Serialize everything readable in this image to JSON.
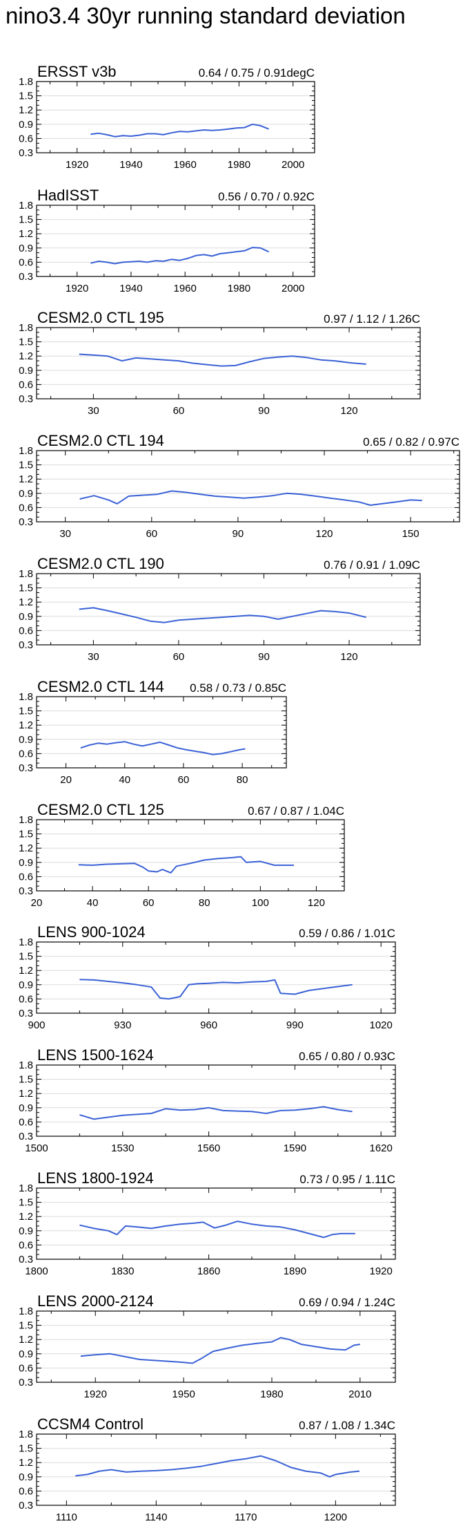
{
  "page": {
    "title": "nino3.4 30yr running standard deviation"
  },
  "style": {
    "line_color": "#3a61d6",
    "axis_color": "#000000",
    "grid_color": "#dcdcdc"
  },
  "chart_data": [
    {
      "type": "line",
      "title": "ERSST v3b",
      "stats": "0.64 / 0.75 / 0.91degC",
      "xlim": [
        1905,
        2008
      ],
      "ylim": [
        0.3,
        1.8
      ],
      "xticks": [
        1920,
        1940,
        1960,
        1980,
        2000
      ],
      "yticks": [
        0.3,
        0.6,
        0.9,
        1.2,
        1.5,
        1.8
      ],
      "grid": true,
      "x": [
        1925,
        1928,
        1931,
        1934,
        1937,
        1940,
        1943,
        1946,
        1949,
        1952,
        1955,
        1958,
        1961,
        1964,
        1967,
        1970,
        1973,
        1976,
        1979,
        1982,
        1985,
        1988,
        1991
      ],
      "y": [
        0.69,
        0.71,
        0.68,
        0.64,
        0.66,
        0.65,
        0.67,
        0.7,
        0.7,
        0.68,
        0.72,
        0.75,
        0.74,
        0.76,
        0.78,
        0.77,
        0.78,
        0.8,
        0.82,
        0.83,
        0.9,
        0.87,
        0.8
      ]
    },
    {
      "type": "line",
      "title": "HadISST",
      "stats": "0.56 / 0.70 / 0.92C",
      "xlim": [
        1905,
        2008
      ],
      "ylim": [
        0.3,
        1.8
      ],
      "xticks": [
        1920,
        1940,
        1960,
        1980,
        2000
      ],
      "yticks": [
        0.3,
        0.6,
        0.9,
        1.2,
        1.5,
        1.8
      ],
      "grid": true,
      "x": [
        1925,
        1928,
        1931,
        1934,
        1937,
        1940,
        1943,
        1946,
        1949,
        1952,
        1955,
        1958,
        1961,
        1964,
        1967,
        1970,
        1973,
        1976,
        1979,
        1982,
        1985,
        1988,
        1991
      ],
      "y": [
        0.58,
        0.62,
        0.6,
        0.57,
        0.6,
        0.61,
        0.62,
        0.6,
        0.63,
        0.62,
        0.66,
        0.64,
        0.68,
        0.74,
        0.76,
        0.73,
        0.78,
        0.8,
        0.82,
        0.84,
        0.91,
        0.9,
        0.82
      ]
    },
    {
      "type": "line",
      "title": "CESM2.0 CTL 195",
      "stats": "0.97 / 1.12 / 1.26C",
      "xlim": [
        10,
        145
      ],
      "ylim": [
        0.3,
        1.8
      ],
      "xticks": [
        30,
        60,
        90,
        120
      ],
      "yticks": [
        0.3,
        0.6,
        0.9,
        1.2,
        1.5,
        1.8
      ],
      "grid": true,
      "x": [
        25,
        30,
        35,
        40,
        45,
        50,
        55,
        60,
        65,
        70,
        75,
        80,
        85,
        90,
        95,
        100,
        105,
        110,
        115,
        120,
        126
      ],
      "y": [
        1.24,
        1.22,
        1.2,
        1.1,
        1.16,
        1.14,
        1.12,
        1.1,
        1.05,
        1.02,
        0.99,
        1.0,
        1.08,
        1.15,
        1.18,
        1.2,
        1.17,
        1.12,
        1.1,
        1.06,
        1.03
      ]
    },
    {
      "type": "line",
      "title": "CESM2.0 CTL 194",
      "stats": "0.65 / 0.82 / 0.97C",
      "xlim": [
        20,
        167
      ],
      "ylim": [
        0.3,
        1.8
      ],
      "xticks": [
        30,
        60,
        90,
        120,
        150
      ],
      "yticks": [
        0.3,
        0.6,
        0.9,
        1.2,
        1.5,
        1.8
      ],
      "grid": true,
      "x": [
        35,
        40,
        45,
        48,
        52,
        57,
        62,
        67,
        72,
        77,
        82,
        87,
        92,
        97,
        102,
        107,
        112,
        117,
        122,
        127,
        132,
        136,
        140,
        145,
        150,
        154
      ],
      "y": [
        0.78,
        0.85,
        0.76,
        0.68,
        0.84,
        0.86,
        0.88,
        0.95,
        0.92,
        0.88,
        0.84,
        0.82,
        0.8,
        0.82,
        0.85,
        0.9,
        0.88,
        0.84,
        0.8,
        0.76,
        0.72,
        0.65,
        0.68,
        0.72,
        0.76,
        0.75
      ]
    },
    {
      "type": "line",
      "title": "CESM2.0 CTL 190",
      "stats": "0.76 / 0.91 / 1.09C",
      "xlim": [
        10,
        145
      ],
      "ylim": [
        0.3,
        1.8
      ],
      "xticks": [
        30,
        60,
        90,
        120
      ],
      "yticks": [
        0.3,
        0.6,
        0.9,
        1.2,
        1.5,
        1.8
      ],
      "grid": true,
      "x": [
        25,
        30,
        35,
        40,
        45,
        50,
        55,
        60,
        65,
        70,
        75,
        80,
        85,
        90,
        95,
        100,
        105,
        110,
        115,
        120,
        126
      ],
      "y": [
        1.05,
        1.08,
        1.02,
        0.95,
        0.88,
        0.8,
        0.77,
        0.82,
        0.84,
        0.86,
        0.88,
        0.9,
        0.92,
        0.9,
        0.84,
        0.9,
        0.96,
        1.02,
        1.0,
        0.97,
        0.88
      ]
    },
    {
      "type": "line",
      "title": "CESM2.0 CTL 144",
      "stats": "0.58 / 0.73 / 0.85C",
      "xlim": [
        10,
        95
      ],
      "ylim": [
        0.3,
        1.8
      ],
      "xticks": [
        20,
        40,
        60,
        80
      ],
      "yticks": [
        0.3,
        0.6,
        0.9,
        1.2,
        1.5,
        1.8
      ],
      "grid": true,
      "x": [
        25,
        28,
        31,
        34,
        37,
        40,
        43,
        46,
        49,
        52,
        55,
        58,
        61,
        64,
        67,
        70,
        73,
        76,
        79,
        81
      ],
      "y": [
        0.72,
        0.78,
        0.82,
        0.8,
        0.83,
        0.85,
        0.8,
        0.76,
        0.8,
        0.84,
        0.78,
        0.72,
        0.68,
        0.65,
        0.62,
        0.58,
        0.6,
        0.64,
        0.68,
        0.7
      ]
    },
    {
      "type": "line",
      "title": "CESM2.0 CTL 125",
      "stats": "0.67 / 0.87 / 1.04C",
      "xlim": [
        20,
        130
      ],
      "ylim": [
        0.3,
        1.8
      ],
      "xticks": [
        20,
        40,
        60,
        80,
        100,
        120
      ],
      "yticks": [
        0.3,
        0.6,
        0.9,
        1.2,
        1.5,
        1.8
      ],
      "grid": true,
      "x": [
        35,
        40,
        45,
        50,
        55,
        58,
        60,
        63,
        65,
        68,
        70,
        75,
        80,
        85,
        90,
        93,
        95,
        100,
        105,
        112
      ],
      "y": [
        0.85,
        0.84,
        0.86,
        0.87,
        0.88,
        0.8,
        0.72,
        0.7,
        0.75,
        0.68,
        0.82,
        0.88,
        0.95,
        0.98,
        1.0,
        1.02,
        0.9,
        0.92,
        0.84,
        0.84
      ]
    },
    {
      "type": "line",
      "title": "LENS 900-1024",
      "stats": "0.59 / 0.86 / 1.01C",
      "xlim": [
        900,
        1025
      ],
      "ylim": [
        0.3,
        1.8
      ],
      "xticks": [
        900,
        930,
        960,
        990,
        1020
      ],
      "yticks": [
        0.3,
        0.6,
        0.9,
        1.2,
        1.5,
        1.8
      ],
      "grid": true,
      "x": [
        915,
        920,
        925,
        930,
        935,
        940,
        943,
        946,
        950,
        953,
        956,
        960,
        965,
        970,
        975,
        980,
        983,
        985,
        990,
        995,
        1000,
        1005,
        1010
      ],
      "y": [
        1.01,
        1.0,
        0.97,
        0.94,
        0.9,
        0.85,
        0.62,
        0.6,
        0.65,
        0.9,
        0.92,
        0.93,
        0.95,
        0.94,
        0.96,
        0.97,
        1.0,
        0.72,
        0.7,
        0.78,
        0.82,
        0.86,
        0.9
      ]
    },
    {
      "type": "line",
      "title": "LENS 1500-1624",
      "stats": "0.65 / 0.80 / 0.93C",
      "xlim": [
        1500,
        1625
      ],
      "ylim": [
        0.3,
        1.8
      ],
      "xticks": [
        1500,
        1530,
        1560,
        1590,
        1620
      ],
      "yticks": [
        0.3,
        0.6,
        0.9,
        1.2,
        1.5,
        1.8
      ],
      "grid": true,
      "x": [
        1515,
        1520,
        1525,
        1530,
        1535,
        1540,
        1545,
        1550,
        1555,
        1560,
        1565,
        1570,
        1575,
        1580,
        1585,
        1590,
        1595,
        1600,
        1605,
        1610
      ],
      "y": [
        0.75,
        0.66,
        0.7,
        0.74,
        0.76,
        0.78,
        0.88,
        0.85,
        0.86,
        0.9,
        0.84,
        0.83,
        0.82,
        0.78,
        0.84,
        0.85,
        0.88,
        0.92,
        0.86,
        0.82
      ]
    },
    {
      "type": "line",
      "title": "LENS 1800-1924",
      "stats": "0.73 / 0.95 / 1.11C",
      "xlim": [
        1800,
        1925
      ],
      "ylim": [
        0.3,
        1.8
      ],
      "xticks": [
        1800,
        1830,
        1860,
        1890,
        1920
      ],
      "yticks": [
        0.3,
        0.6,
        0.9,
        1.2,
        1.5,
        1.8
      ],
      "grid": true,
      "x": [
        1815,
        1820,
        1825,
        1828,
        1831,
        1835,
        1840,
        1845,
        1850,
        1855,
        1858,
        1862,
        1866,
        1870,
        1875,
        1880,
        1885,
        1890,
        1895,
        1900,
        1903,
        1906,
        1911
      ],
      "y": [
        1.02,
        0.95,
        0.9,
        0.82,
        1.0,
        0.98,
        0.95,
        1.0,
        1.04,
        1.06,
        1.08,
        0.96,
        1.02,
        1.1,
        1.04,
        1.0,
        0.98,
        0.92,
        0.84,
        0.76,
        0.82,
        0.84,
        0.84
      ]
    },
    {
      "type": "line",
      "title": "LENS 2000-2124",
      "stats": "0.69 / 0.94 / 1.24C",
      "xlim": [
        1900,
        2022
      ],
      "ylim": [
        0.3,
        1.8
      ],
      "xticks": [
        1920,
        1950,
        1980,
        2010
      ],
      "yticks": [
        0.3,
        0.6,
        0.9,
        1.2,
        1.5,
        1.8
      ],
      "grid": true,
      "x": [
        1915,
        1920,
        1925,
        1930,
        1935,
        1940,
        1945,
        1950,
        1953,
        1956,
        1960,
        1965,
        1970,
        1975,
        1980,
        1983,
        1986,
        1990,
        1995,
        2000,
        2005,
        2008,
        2010
      ],
      "y": [
        0.85,
        0.88,
        0.9,
        0.84,
        0.78,
        0.76,
        0.74,
        0.72,
        0.7,
        0.8,
        0.95,
        1.02,
        1.08,
        1.12,
        1.15,
        1.24,
        1.2,
        1.1,
        1.05,
        1.0,
        0.98,
        1.08,
        1.1
      ]
    },
    {
      "type": "line",
      "title": "CCSM4 Control",
      "stats": "0.87 / 1.08 / 1.34C",
      "xlim": [
        1100,
        1220
      ],
      "ylim": [
        0.3,
        1.8
      ],
      "xticks": [
        1110,
        1140,
        1170,
        1200
      ],
      "yticks": [
        0.3,
        0.6,
        0.9,
        1.2,
        1.5,
        1.8
      ],
      "grid": true,
      "x": [
        1113,
        1117,
        1121,
        1125,
        1130,
        1135,
        1140,
        1145,
        1150,
        1155,
        1160,
        1165,
        1170,
        1175,
        1180,
        1185,
        1190,
        1195,
        1198,
        1200,
        1205,
        1208
      ],
      "y": [
        0.92,
        0.95,
        1.02,
        1.05,
        1.0,
        1.02,
        1.03,
        1.05,
        1.08,
        1.12,
        1.18,
        1.24,
        1.28,
        1.34,
        1.24,
        1.1,
        1.02,
        0.98,
        0.9,
        0.95,
        1.0,
        1.02
      ]
    }
  ]
}
